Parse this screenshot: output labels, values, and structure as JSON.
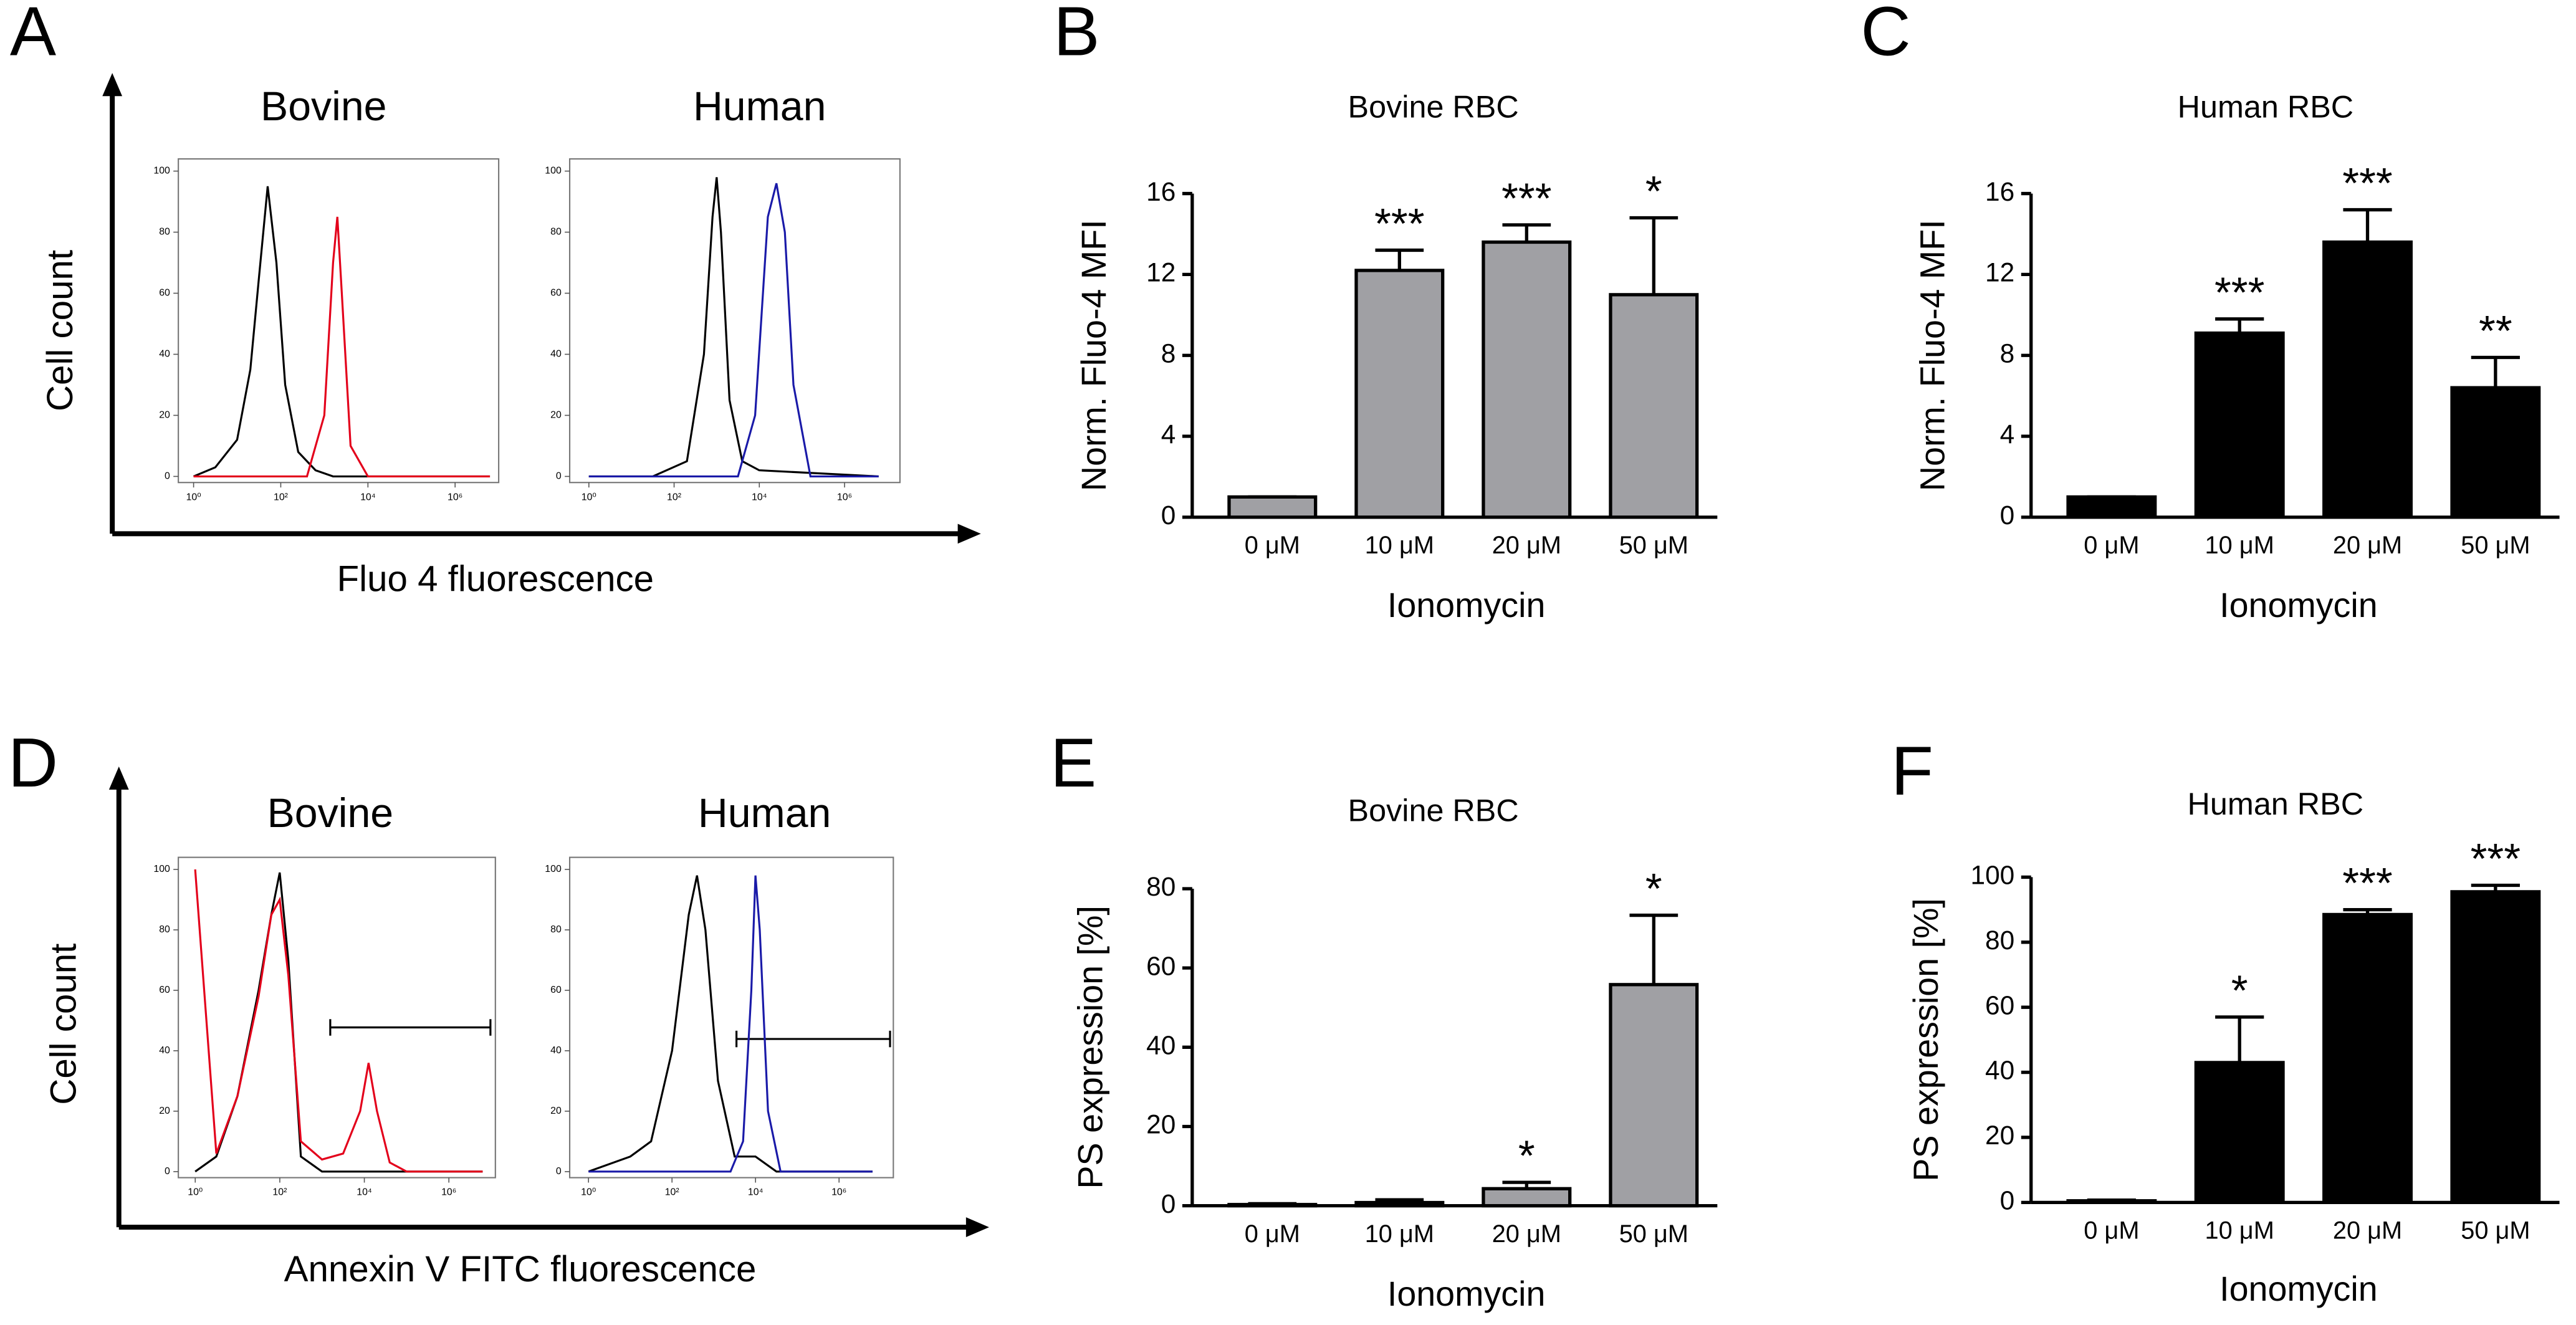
{
  "chart_data": [
    {
      "type": "flow",
      "panel": "A",
      "ylabel": "Cell count",
      "xlabel": "Fluo 4 fluorescence",
      "subplots": [
        {
          "title": "Bovine",
          "xlim": [
            -0.35,
            7
          ],
          "ylim": [
            -2,
            104
          ],
          "xticks": [
            {
              "value": 0,
              "label": "10⁰"
            },
            {
              "value": 2,
              "label": "10²"
            },
            {
              "value": 4,
              "label": "10⁴"
            },
            {
              "value": 6,
              "label": "10⁶"
            }
          ],
          "yticks": [
            0,
            20,
            40,
            60,
            80,
            100
          ],
          "series": [
            {
              "color": "#000000",
              "x": [
                0,
                0.5,
                1,
                1.3,
                1.5,
                1.7,
                1.9,
                2.1,
                2.4,
                2.8,
                3.2,
                4,
                6.8
              ],
              "values": [
                0,
                3,
                12,
                35,
                65,
                95,
                70,
                30,
                8,
                2,
                0,
                0,
                0
              ]
            },
            {
              "color": "#e3001b",
              "x": [
                0,
                2.6,
                3.0,
                3.2,
                3.3,
                3.4,
                3.6,
                4.0,
                6.8
              ],
              "values": [
                0,
                0,
                20,
                70,
                85,
                60,
                10,
                0,
                0
              ]
            }
          ]
        },
        {
          "title": "Human",
          "xlim": [
            -0.45,
            7.3
          ],
          "ylim": [
            -2,
            104
          ],
          "xticks": [
            {
              "value": 0,
              "label": "10⁰"
            },
            {
              "value": 2,
              "label": "10²"
            },
            {
              "value": 4,
              "label": "10⁴"
            },
            {
              "value": 6,
              "label": "10⁶"
            }
          ],
          "yticks": [
            0,
            20,
            40,
            60,
            80,
            100
          ],
          "series": [
            {
              "color": "#000000",
              "x": [
                0,
                1.5,
                2.3,
                2.7,
                2.9,
                3.0,
                3.1,
                3.3,
                3.6,
                4,
                6.8
              ],
              "values": [
                0,
                0,
                5,
                40,
                85,
                98,
                80,
                25,
                5,
                2,
                0
              ]
            },
            {
              "color": "#1a1aa8",
              "x": [
                0,
                3.5,
                3.9,
                4.2,
                4.4,
                4.6,
                4.8,
                5.2,
                6.8
              ],
              "values": [
                0,
                0,
                20,
                85,
                96,
                80,
                30,
                0,
                0
              ]
            }
          ]
        }
      ]
    },
    {
      "type": "bar",
      "panel": "B",
      "title": "Bovine RBC",
      "ylabel": "Norm. Fluo-4 MFI",
      "xlabel": "Ionomycin",
      "color": "#a0a0a4",
      "categories": [
        "0 μM",
        "10 μM",
        "20 μM",
        "50 μM"
      ],
      "values": [
        1,
        12.2,
        13.6,
        11.0
      ],
      "errors": [
        0,
        1.0,
        0.85,
        3.8
      ],
      "annotations": [
        null,
        "***",
        "***",
        "*"
      ],
      "ylim": [
        0,
        16
      ],
      "yticks": [
        0,
        4,
        8,
        12,
        16
      ]
    },
    {
      "type": "bar",
      "panel": "C",
      "title": "Human RBC",
      "ylabel": "Norm. Fluo-4 MFI",
      "xlabel": "Ionomycin",
      "color": "#000000",
      "categories": [
        "0 μM",
        "10 μM",
        "20 μM",
        "50 μM"
      ],
      "values": [
        1,
        9.1,
        13.6,
        6.4
      ],
      "errors": [
        0,
        0.7,
        1.6,
        1.5
      ],
      "annotations": [
        null,
        "***",
        "***",
        "**"
      ],
      "ylim": [
        0,
        16
      ],
      "yticks": [
        0,
        4,
        8,
        12,
        16
      ]
    },
    {
      "type": "flow",
      "panel": "D",
      "ylabel": "Cell count",
      "xlabel": "Annexin V FITC fluorescence",
      "subplots": [
        {
          "title": "Bovine",
          "xlim": [
            -0.4,
            7.1
          ],
          "ylim": [
            -2,
            104
          ],
          "xticks": [
            {
              "value": 0,
              "label": "10⁰"
            },
            {
              "value": 2,
              "label": "10²"
            },
            {
              "value": 4,
              "label": "10⁴"
            },
            {
              "value": 6,
              "label": "10⁶"
            }
          ],
          "yticks": [
            0,
            20,
            40,
            60,
            80,
            100
          ],
          "series": [
            {
              "color": "#000000",
              "x": [
                0,
                0.5,
                1,
                1.5,
                1.8,
                2.0,
                2.2,
                2.5,
                3,
                4,
                6.8
              ],
              "values": [
                0,
                5,
                25,
                60,
                85,
                99,
                70,
                5,
                0,
                0,
                0
              ]
            },
            {
              "color": "#e3001b",
              "x": [
                0,
                0.5,
                1,
                1.5,
                1.8,
                2.0,
                2.2,
                2.5,
                3,
                3.5,
                3.9,
                4.1,
                4.3,
                4.6,
                5,
                6.8
              ],
              "values": [
                100,
                6,
                25,
                58,
                85,
                90,
                65,
                10,
                4,
                6,
                20,
                36,
                20,
                3,
                0,
                0
              ]
            }
          ]
        },
        {
          "title": "Human",
          "xlim": [
            -0.45,
            7.3
          ],
          "ylim": [
            -2,
            104
          ],
          "xticks": [
            {
              "value": 0,
              "label": "10⁰"
            },
            {
              "value": 2,
              "label": "10²"
            },
            {
              "value": 4,
              "label": "10⁴"
            },
            {
              "value": 6,
              "label": "10⁶"
            }
          ],
          "yticks": [
            0,
            20,
            40,
            60,
            80,
            100
          ],
          "series": [
            {
              "color": "#000000",
              "x": [
                0,
                1,
                1.5,
                2,
                2.4,
                2.6,
                2.8,
                3.1,
                3.5,
                4,
                4.5,
                6.8
              ],
              "values": [
                0,
                5,
                10,
                40,
                85,
                98,
                80,
                30,
                5,
                5,
                0,
                0
              ]
            },
            {
              "color": "#1a1aa8",
              "x": [
                0,
                3.4,
                3.7,
                3.9,
                4.0,
                4.1,
                4.3,
                4.6,
                6.8
              ],
              "values": [
                0,
                0,
                10,
                60,
                98,
                80,
                20,
                0,
                0
              ]
            }
          ]
        }
      ]
    },
    {
      "type": "bar",
      "panel": "E",
      "title": "Bovine RBC",
      "ylabel": "PS expression [%]",
      "xlabel": "Ionomycin",
      "color": "#a0a0a4",
      "categories": [
        "0 μM",
        "10 μM",
        "20 μM",
        "50 μM"
      ],
      "values": [
        0.3,
        0.8,
        4.3,
        55.8
      ],
      "errors": [
        0.2,
        0.7,
        1.6,
        17.5
      ],
      "annotations": [
        null,
        null,
        "*",
        "*"
      ],
      "ylim": [
        0,
        80
      ],
      "yticks": [
        0,
        20,
        40,
        60,
        80
      ]
    },
    {
      "type": "bar",
      "panel": "F",
      "title": "Human RBC",
      "ylabel": "PS expression [%]",
      "xlabel": "Ionomycin",
      "color": "#000000",
      "categories": [
        "0 μM",
        "10 μM",
        "20 μM",
        "50 μM"
      ],
      "values": [
        0.5,
        43,
        88.5,
        95.5
      ],
      "errors": [
        0.2,
        14,
        1.5,
        2
      ],
      "annotations": [
        null,
        "*",
        "***",
        "***"
      ],
      "ylim": [
        0,
        100
      ],
      "yticks": [
        0,
        20,
        40,
        60,
        80,
        100
      ]
    }
  ]
}
